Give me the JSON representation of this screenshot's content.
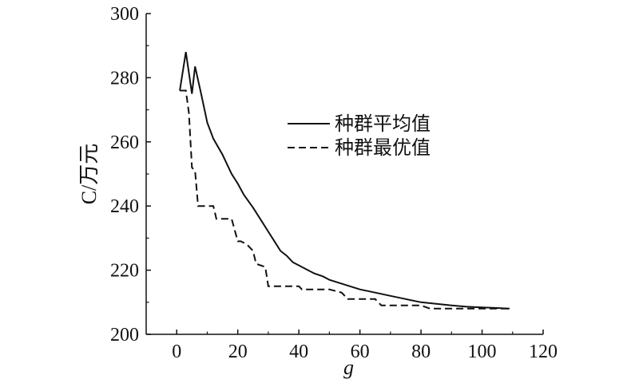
{
  "chart_data": {
    "type": "line",
    "title": "",
    "xlabel": "g",
    "ylabel": "C/万元",
    "xlim": [
      -10,
      120
    ],
    "ylim": [
      200,
      300
    ],
    "xticks": [
      0,
      20,
      40,
      60,
      80,
      100,
      120
    ],
    "yticks": [
      200,
      220,
      240,
      260,
      280,
      300
    ],
    "grid": false,
    "legend_position": "center-right",
    "series": [
      {
        "name": "种群平均值",
        "style": "solid",
        "color": "#111111",
        "x": [
          1,
          3,
          5,
          6,
          8,
          10,
          12,
          15,
          18,
          20,
          22,
          25,
          28,
          30,
          32,
          34,
          36,
          38,
          40,
          42,
          45,
          48,
          50,
          55,
          60,
          65,
          70,
          75,
          80,
          85,
          90,
          95,
          100,
          105,
          109
        ],
        "y": [
          276,
          288,
          275,
          283.5,
          275,
          266,
          261,
          256,
          250,
          247,
          243.5,
          239.5,
          235,
          232,
          229,
          226,
          224.5,
          222.5,
          221.5,
          220.5,
          219,
          218,
          217,
          215.5,
          214,
          213,
          212,
          211,
          210,
          209.5,
          209,
          208.6,
          208.4,
          208.2,
          208
        ]
      },
      {
        "name": "种群最优值",
        "style": "dashed",
        "color": "#111111",
        "x": [
          1,
          3,
          4,
          5,
          6,
          7,
          8,
          12,
          13,
          17,
          18,
          20,
          21,
          23,
          25,
          26,
          29,
          30,
          32,
          40,
          41,
          50,
          54,
          56,
          65,
          67,
          80,
          83,
          90,
          100,
          109
        ],
        "y": [
          276,
          276,
          269,
          252,
          251,
          240,
          240,
          240,
          236,
          236,
          236,
          229,
          229,
          228,
          226,
          222,
          221,
          215,
          215,
          215,
          214,
          214,
          213,
          211,
          211,
          209,
          209,
          208,
          208,
          208,
          208
        ]
      }
    ]
  }
}
